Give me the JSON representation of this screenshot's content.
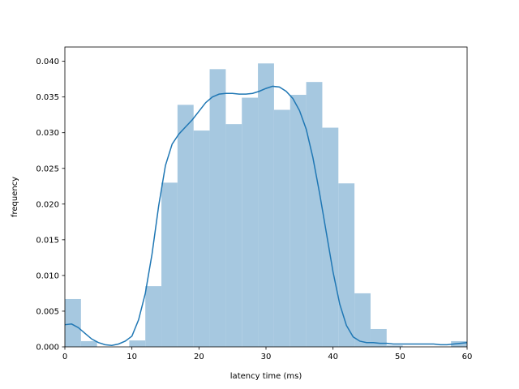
{
  "chart_data": {
    "type": "histogram",
    "title": "",
    "xlabel": "latency time (ms)",
    "ylabel": "frequency",
    "xlim": [
      0,
      60
    ],
    "ylim": [
      0,
      0.042
    ],
    "grid": false,
    "legend": "none",
    "x_ticks": [
      0,
      10,
      20,
      30,
      40,
      50,
      60
    ],
    "x_tick_labels": [
      "0",
      "10",
      "20",
      "30",
      "40",
      "50",
      "60"
    ],
    "y_ticks": [
      0,
      0.005,
      0.01,
      0.015,
      0.02,
      0.025,
      0.03,
      0.035,
      0.04
    ],
    "y_tick_labels": [
      "0.000",
      "0.005",
      "0.010",
      "0.015",
      "0.020",
      "0.025",
      "0.030",
      "0.035",
      "0.040"
    ],
    "bins": [
      {
        "x0": 0.0,
        "x1": 2.4,
        "value": 0.0067
      },
      {
        "x0": 2.4,
        "x1": 4.8,
        "value": 0.0008
      },
      {
        "x0": 4.8,
        "x1": 7.2,
        "value": 0.0
      },
      {
        "x0": 7.2,
        "x1": 9.6,
        "value": 0.0
      },
      {
        "x0": 9.6,
        "x1": 12.0,
        "value": 0.0009
      },
      {
        "x0": 12.0,
        "x1": 14.4,
        "value": 0.0085
      },
      {
        "x0": 14.4,
        "x1": 16.8,
        "value": 0.023
      },
      {
        "x0": 16.8,
        "x1": 19.2,
        "value": 0.0339
      },
      {
        "x0": 19.2,
        "x1": 21.6,
        "value": 0.0303
      },
      {
        "x0": 21.6,
        "x1": 24.0,
        "value": 0.0389
      },
      {
        "x0": 24.0,
        "x1": 26.4,
        "value": 0.0312
      },
      {
        "x0": 26.4,
        "x1": 28.8,
        "value": 0.0349
      },
      {
        "x0": 28.8,
        "x1": 31.2,
        "value": 0.0397
      },
      {
        "x0": 31.2,
        "x1": 33.6,
        "value": 0.0332
      },
      {
        "x0": 33.6,
        "x1": 36.0,
        "value": 0.0353
      },
      {
        "x0": 36.0,
        "x1": 38.4,
        "value": 0.0371
      },
      {
        "x0": 38.4,
        "x1": 40.8,
        "value": 0.0307
      },
      {
        "x0": 40.8,
        "x1": 43.2,
        "value": 0.0229
      },
      {
        "x0": 43.2,
        "x1": 45.6,
        "value": 0.0075
      },
      {
        "x0": 45.6,
        "x1": 48.0,
        "value": 0.0025
      },
      {
        "x0": 48.0,
        "x1": 50.4,
        "value": 0.0002
      },
      {
        "x0": 50.4,
        "x1": 52.8,
        "value": 0.0
      },
      {
        "x0": 52.8,
        "x1": 55.2,
        "value": 0.0
      },
      {
        "x0": 55.2,
        "x1": 57.6,
        "value": 0.0
      },
      {
        "x0": 57.6,
        "x1": 60.0,
        "value": 0.0008
      }
    ],
    "kde": {
      "x": [
        0,
        1,
        2,
        3,
        4,
        5,
        6,
        7,
        8,
        9,
        10,
        11,
        12,
        13,
        14,
        15,
        16,
        17,
        18,
        19,
        20,
        21,
        22,
        23,
        24,
        25,
        26,
        27,
        28,
        29,
        30,
        31,
        32,
        33,
        34,
        35,
        36,
        37,
        38,
        39,
        40,
        41,
        42,
        43,
        44,
        45,
        46,
        47,
        48,
        49,
        50,
        51,
        52,
        53,
        54,
        55,
        56,
        57,
        58,
        59,
        60
      ],
      "y": [
        0.0031,
        0.0032,
        0.0027,
        0.0019,
        0.0011,
        0.0006,
        0.0003,
        0.0002,
        0.0004,
        0.0008,
        0.0015,
        0.0038,
        0.0075,
        0.013,
        0.0198,
        0.0254,
        0.0284,
        0.0298,
        0.0308,
        0.0318,
        0.033,
        0.0342,
        0.035,
        0.0354,
        0.0355,
        0.0355,
        0.0354,
        0.0354,
        0.0355,
        0.0358,
        0.0362,
        0.0365,
        0.0364,
        0.0358,
        0.0348,
        0.0331,
        0.0305,
        0.0265,
        0.0215,
        0.016,
        0.0105,
        0.006,
        0.003,
        0.0014,
        0.0008,
        0.0006,
        0.0006,
        0.0005,
        0.0005,
        0.0004,
        0.0004,
        0.0004,
        0.0004,
        0.0004,
        0.0004,
        0.0004,
        0.0003,
        0.0003,
        0.0004,
        0.0005,
        0.0006
      ]
    },
    "colors": {
      "bars": "#a6c8e0",
      "kde_line": "#1f77b4",
      "axes": "#000000"
    }
  }
}
